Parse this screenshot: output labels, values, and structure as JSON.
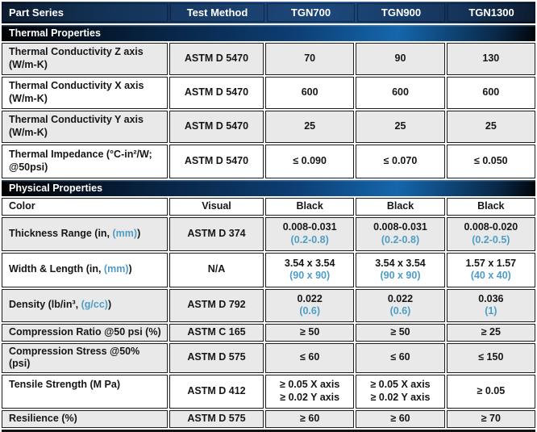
{
  "colors": {
    "header_navy": "#1d4a7f",
    "section_bar_blue": "#1566ac",
    "near_black": "#05080c",
    "row_gray": "#e9e9e9",
    "accent_blue_text": "#4e9dc7",
    "border_black": "#1c1c1c",
    "text_black": "#161616",
    "header_text": "#ffffff"
  },
  "header": {
    "columns": [
      "Part Series",
      "Test Method",
      "TGN700",
      "TGN900",
      "TGN1300"
    ]
  },
  "sections": [
    {
      "title": "Thermal Properties",
      "rows": [
        {
          "label": {
            "pre": "Thermal Conductivity Z axis\n(W/m-K)"
          },
          "method": "ASTM D 5470",
          "cells": [
            {
              "main": "70"
            },
            {
              "main": "90"
            },
            {
              "main": "130"
            }
          ]
        },
        {
          "label": {
            "pre": "Thermal Conductivity X axis\n(W/m-K)"
          },
          "method": "ASTM D 5470",
          "cells": [
            {
              "main": "600"
            },
            {
              "main": "600"
            },
            {
              "main": "600"
            }
          ]
        },
        {
          "label": {
            "pre": "Thermal Conductivity Y axis\n(W/m-K)"
          },
          "method": "ASTM D 5470",
          "cells": [
            {
              "main": "25"
            },
            {
              "main": "25"
            },
            {
              "main": "25"
            }
          ]
        },
        {
          "label": {
            "pre": "Thermal Impedance (°C-in²/W;\n@50psi)"
          },
          "method": "ASTM D 5470",
          "cells": [
            {
              "main": "≤ 0.090"
            },
            {
              "main": "≤ 0.070"
            },
            {
              "main": "≤ 0.050"
            }
          ]
        }
      ]
    },
    {
      "title": "Physical Properties",
      "rows": [
        {
          "label": {
            "pre": "Color"
          },
          "method": "Visual",
          "cells": [
            {
              "main": "Black"
            },
            {
              "main": "Black"
            },
            {
              "main": "Black"
            }
          ]
        },
        {
          "label": {
            "pre": "Thickness Range (in, ",
            "blue": "(mm)",
            "post": ")"
          },
          "method": "ASTM D 374",
          "cells": [
            {
              "main": "0.008-0.031",
              "blue": "(0.2-0.8)"
            },
            {
              "main": "0.008-0.031",
              "blue": "(0.2-0.8)"
            },
            {
              "main": "0.008-0.020",
              "blue": "(0.2-0.5)"
            }
          ]
        },
        {
          "label": {
            "pre": "Width & Length (in, ",
            "blue": "(mm)",
            "post": ")"
          },
          "method": "N/A",
          "cells": [
            {
              "main": "3.54 x 3.54",
              "blue": "(90 x 90)"
            },
            {
              "main": "3.54 x 3.54",
              "blue": "(90 x 90)"
            },
            {
              "main": "1.57 x 1.57",
              "blue": "(40 x 40)"
            }
          ]
        },
        {
          "label": {
            "pre": "Density (lb/in³, ",
            "blue": "(g/cc)",
            "post": ")"
          },
          "method": "ASTM D 792",
          "cells": [
            {
              "main": "0.022",
              "blue": "(0.6)"
            },
            {
              "main": "0.022",
              "blue": "(0.6)"
            },
            {
              "main": "0.036",
              "blue": "(1)"
            }
          ]
        },
        {
          "label": {
            "pre": "Compression Ratio @50 psi (%)"
          },
          "method": "ASTM C 165",
          "cells": [
            {
              "main": "≥ 50"
            },
            {
              "main": "≥ 50"
            },
            {
              "main": "≥ 25"
            }
          ]
        },
        {
          "label": {
            "pre": "Compression Stress @50% (psi)"
          },
          "method": "ASTM D 575",
          "cells": [
            {
              "main": "≤ 60"
            },
            {
              "main": "≤ 60"
            },
            {
              "main": "≤ 150"
            }
          ]
        },
        {
          "label": {
            "pre": "Tensile Strength (M Pa)"
          },
          "method": "ASTM D 412",
          "cells": [
            {
              "main": "≥ 0.05 X axis",
              "line2": "≥ 0.02 Y axis"
            },
            {
              "main": "≥ 0.05 X axis",
              "line2": "≥ 0.02 Y axis"
            },
            {
              "main": "≥ 0.05"
            }
          ]
        },
        {
          "label": {
            "pre": "Resilience (%)"
          },
          "method": "ASTM D 575",
          "cells": [
            {
              "main": "≥ 60"
            },
            {
              "main": "≥ 60"
            },
            {
              "main": "≥ 70"
            }
          ]
        }
      ]
    }
  ]
}
